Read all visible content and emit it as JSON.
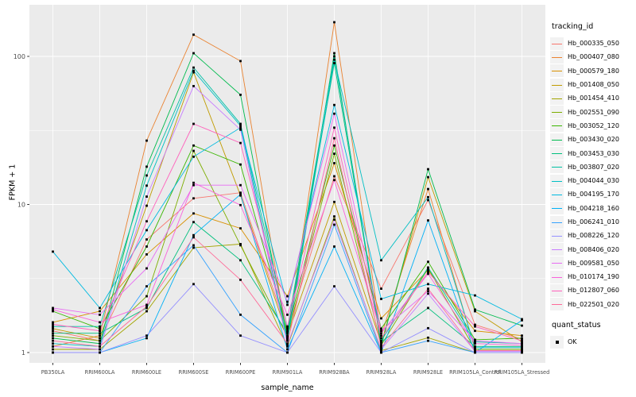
{
  "legend": {
    "tracking_title": "tracking_id",
    "quant_title": "quant_status",
    "quant_label": "OK"
  },
  "colors": {
    "panel_bg": "#EBEBEB",
    "grid_major": "#FFFFFF",
    "grid_minor": "#FFFFFF",
    "axis_text": "#4D4D4D",
    "tick_mark": "#333333",
    "point": "#000000",
    "legend_key_bg": "#F2F2F2"
  },
  "chart_data": {
    "type": "line",
    "title": "",
    "xlabel": "sample_name",
    "ylabel": "FPKM + 1",
    "yscale": "log10",
    "y_tick_values": [
      1,
      10,
      100
    ],
    "y_tick_labels": [
      "1",
      "10",
      "100"
    ],
    "y_minor_values": [
      3.162,
      31.62
    ],
    "ylim": [
      0.85,
      223
    ],
    "grid": true,
    "legend_position": "right",
    "point_shape": "filled-square",
    "categories": [
      "PB350LA",
      "RRIM600LA",
      "RRIM600LE",
      "RRIM600SE",
      "RRIM600PE",
      "RRIM901LA",
      "RRIM928BA",
      "RRIM928LA",
      "RRIM928LE",
      "RRIM105LA_Control",
      "RRIM105LA_Stressed"
    ],
    "series": [
      {
        "name": "Hb_000335_050",
        "color": "#F8766D",
        "values": [
          1.4,
          1.2,
          5.8,
          11,
          12,
          1.4,
          15.5,
          2.7,
          10.7,
          1.54,
          1.23
        ]
      },
      {
        "name": "Hb_000407_080",
        "color": "#EA8331",
        "values": [
          1.1,
          1.3,
          27,
          140,
          93,
          1.23,
          170,
          1.3,
          12.7,
          1.05,
          1.05
        ]
      },
      {
        "name": "Hb_000579_180",
        "color": "#D89000",
        "values": [
          1.6,
          1.9,
          4.6,
          8.7,
          6.9,
          2.4,
          19,
          1.7,
          3.6,
          1.4,
          1.3
        ]
      },
      {
        "name": "Hb_001408_050",
        "color": "#C09B00",
        "values": [
          1.45,
          1.25,
          9.8,
          78,
          11.5,
          1.3,
          10.4,
          1.15,
          15.3,
          1.9,
          1.18
        ]
      },
      {
        "name": "Hb_001454_410",
        "color": "#A3A500",
        "values": [
          1.05,
          1.05,
          1.9,
          5.1,
          5.4,
          1.1,
          8.3,
          1.03,
          1.26,
          1.0,
          1.0
        ]
      },
      {
        "name": "Hb_002551_090",
        "color": "#7CAE00",
        "values": [
          1.3,
          1.2,
          2.4,
          23,
          5.3,
          1.28,
          22,
          1.12,
          3.7,
          1.05,
          1.05
        ]
      },
      {
        "name": "Hb_003052_120",
        "color": "#39B600",
        "values": [
          1.9,
          1.45,
          5.2,
          25,
          18.6,
          1.38,
          25,
          1.45,
          4.1,
          1.22,
          1.25
        ]
      },
      {
        "name": "Hb_003430_020",
        "color": "#00BB4E",
        "values": [
          1.25,
          1.15,
          18,
          105,
          55,
          1.25,
          105,
          1.1,
          17.3,
          1.95,
          1.52
        ]
      },
      {
        "name": "Hb_003453_030",
        "color": "#00BF7D",
        "values": [
          1.35,
          1.35,
          2.0,
          7.6,
          4.2,
          1.35,
          90,
          1.18,
          2.0,
          1.1,
          1.1
        ]
      },
      {
        "name": "Hb_003807_020",
        "color": "#00C1A3",
        "values": [
          1.5,
          1.5,
          15.7,
          84,
          35,
          1.45,
          100,
          1.2,
          3.75,
          1.18,
          1.15
        ]
      },
      {
        "name": "Hb_004044_030",
        "color": "#00BFC4",
        "values": [
          1.15,
          1.1,
          13.4,
          80,
          34,
          1.2,
          95,
          4.2,
          11.2,
          1.08,
          1.08
        ]
      },
      {
        "name": "Hb_004195_170",
        "color": "#00BAE0",
        "values": [
          4.8,
          2.0,
          6.7,
          21,
          33,
          2.1,
          47,
          2.3,
          2.9,
          2.43,
          1.68
        ]
      },
      {
        "name": "Hb_004218_160",
        "color": "#00B0F6",
        "values": [
          1.0,
          1.0,
          1.25,
          6.2,
          11.7,
          1.05,
          5.2,
          1.0,
          7.8,
          1.0,
          1.65
        ]
      },
      {
        "name": "Hb_006241_010",
        "color": "#35A2FF",
        "values": [
          1.0,
          1.0,
          2.8,
          5.3,
          1.8,
          1.0,
          7.3,
          1.0,
          1.2,
          1.0,
          1.0
        ]
      },
      {
        "name": "Hb_008226_120",
        "color": "#9590FF",
        "values": [
          1.0,
          1.0,
          1.3,
          2.9,
          1.3,
          1.0,
          2.8,
          1.0,
          1.46,
          1.0,
          1.0
        ]
      },
      {
        "name": "Hb_008406_020",
        "color": "#C77CFF",
        "values": [
          1.1,
          1.05,
          11.3,
          63,
          32,
          1.13,
          7.9,
          1.05,
          2.5,
          1.02,
          1.02
        ]
      },
      {
        "name": "Hb_009581_050",
        "color": "#E76BF3",
        "values": [
          2.0,
          1.8,
          3.7,
          13.5,
          13.5,
          2.2,
          41,
          1.4,
          2.6,
          1.2,
          1.15
        ]
      },
      {
        "name": "Hb_010174_190",
        "color": "#FA62DB",
        "values": [
          1.95,
          1.6,
          2.1,
          14,
          9.9,
          1.8,
          14.6,
          1.35,
          3.4,
          1.15,
          1.12
        ]
      },
      {
        "name": "Hb_012807_060",
        "color": "#FF62BC",
        "values": [
          1.55,
          1.4,
          7.7,
          35,
          26,
          1.5,
          33,
          1.25,
          3.5,
          1.5,
          1.2
        ]
      },
      {
        "name": "Hb_022501_020",
        "color": "#FF6A98",
        "values": [
          1.2,
          1.1,
          2.05,
          6.0,
          3.1,
          1.15,
          28,
          1.08,
          2.7,
          1.03,
          1.03
        ]
      }
    ]
  }
}
